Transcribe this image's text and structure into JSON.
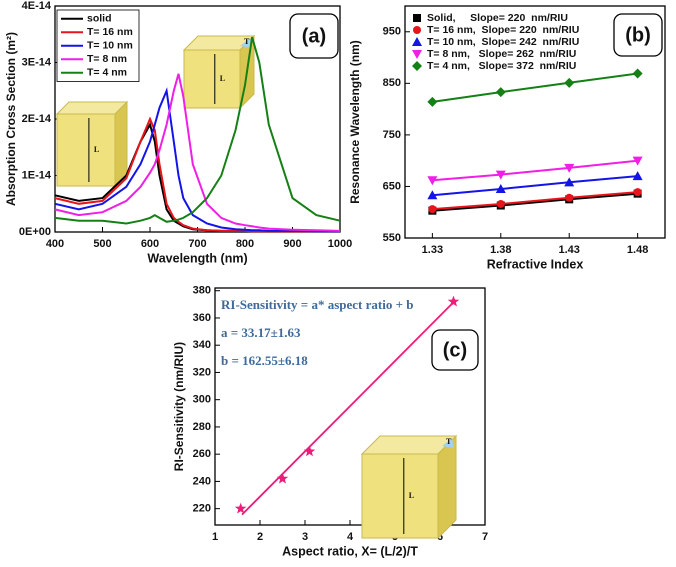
{
  "chart_data": [
    {
      "type": "line",
      "label": "(a)",
      "xlabel": "Wavelength (nm)",
      "ylabel": "Absorption Cross Section (m²)",
      "xlim": [
        400,
        1000
      ],
      "xticks": [
        400,
        500,
        600,
        700,
        800,
        900,
        1000
      ],
      "ylim": [
        0,
        4e-14
      ],
      "yticks": [
        {
          "value": 0,
          "label": "0E+00"
        },
        {
          "value": 1e-14,
          "label": "1E-14"
        },
        {
          "value": 2e-14,
          "label": "2E-14"
        },
        {
          "value": 3e-14,
          "label": "3E-14"
        },
        {
          "value": 4e-14,
          "label": "4E-14"
        }
      ],
      "legend": "upper left",
      "inset_labels": [
        "L",
        "T"
      ],
      "x": [
        400,
        450,
        500,
        550,
        580,
        600,
        610,
        620,
        635,
        650,
        660,
        670,
        690,
        720,
        750,
        780,
        800,
        815,
        830,
        850,
        900,
        950,
        1000
      ],
      "series": [
        {
          "name": "solid",
          "color": "#000000",
          "values": [
            6.5e-15,
            5.5e-15,
            6e-15,
            1e-14,
            1.6e-14,
            1.9e-14,
            1.6e-14,
            1e-14,
            4e-15,
            2e-15,
            1.5e-15,
            1e-15,
            5e-16,
            3e-16,
            2e-16,
            2e-16,
            2e-16,
            1e-16,
            1e-16,
            1e-16,
            1e-16,
            1e-16,
            1e-16
          ]
        },
        {
          "name": "T= 16 nm",
          "color": "#e8141c",
          "values": [
            6e-15,
            5e-15,
            5.5e-15,
            9.5e-15,
            1.6e-14,
            2e-14,
            1.8e-14,
            1.2e-14,
            5e-15,
            2.5e-15,
            1.8e-15,
            1.2e-15,
            6e-16,
            3e-16,
            2e-16,
            2e-16,
            2e-16,
            1e-16,
            1e-16,
            1e-16,
            1e-16,
            1e-16,
            1e-16
          ]
        },
        {
          "name": "T= 10 nm",
          "color": "#1414e8",
          "values": [
            5e-15,
            4e-15,
            5e-15,
            8e-15,
            1.2e-14,
            1.6e-14,
            1.9e-14,
            2.2e-14,
            2.5e-14,
            1.6e-14,
            1e-14,
            6e-15,
            3e-15,
            1.5e-15,
            8e-16,
            5e-16,
            4e-16,
            3e-16,
            3e-16,
            2e-16,
            2e-16,
            1e-16,
            1e-16
          ]
        },
        {
          "name": "T= 8 nm",
          "color": "#f01ee6",
          "values": [
            4e-15,
            3e-15,
            3.5e-15,
            5.5e-15,
            8e-15,
            1.05e-14,
            1.2e-14,
            1.45e-14,
            1.9e-14,
            2.5e-14,
            2.8e-14,
            2.4e-14,
            1.2e-14,
            5e-15,
            2.5e-15,
            1.5e-15,
            1.2e-15,
            1e-15,
            8e-16,
            6e-16,
            4e-16,
            3e-16,
            2e-16
          ]
        },
        {
          "name": "T= 4 nm",
          "color": "#158015",
          "values": [
            2.5e-15,
            2e-15,
            2e-15,
            1.5e-15,
            2e-15,
            2.5e-15,
            3e-15,
            2.5e-15,
            1.8e-15,
            2e-15,
            2.2e-15,
            2.5e-15,
            3.5e-15,
            6e-15,
            1e-14,
            1.8e-14,
            2.6e-14,
            3.45e-14,
            3e-14,
            1.9e-14,
            6e-15,
            3e-15,
            2e-15
          ]
        }
      ]
    },
    {
      "type": "line",
      "label": "(b)",
      "xlabel": "Refractive Index",
      "ylabel": "Resonance Wavelength (nm)",
      "xlim": [
        1.31,
        1.5
      ],
      "xticks": [
        1.33,
        1.38,
        1.43,
        1.48
      ],
      "ylim": [
        550,
        1000
      ],
      "yticks": [
        550,
        650,
        750,
        850,
        950
      ],
      "legend": "upper left",
      "x": [
        1.33,
        1.38,
        1.43,
        1.48
      ],
      "series": [
        {
          "name": "Solid,     Slope= 220  nm/RIU",
          "color": "#000000",
          "marker": "square",
          "values": [
            603,
            613,
            625,
            636
          ]
        },
        {
          "name": "T= 16 nm,  Slope= 220  nm/RIU",
          "color": "#e8141c",
          "marker": "circle",
          "values": [
            606,
            616,
            628,
            639
          ]
        },
        {
          "name": "T= 10 nm,  Slope= 242  nm/RIU",
          "color": "#1414e8",
          "marker": "triangle-up",
          "values": [
            633,
            645,
            658,
            670
          ]
        },
        {
          "name": "T= 8 nm,   Slope= 262  nm/RIU",
          "color": "#f01ee6",
          "marker": "triangle-down",
          "values": [
            662,
            673,
            686,
            700
          ]
        },
        {
          "name": "T= 4 nm,   Slope= 372  nm/RIU",
          "color": "#158015",
          "marker": "diamond",
          "values": [
            814,
            833,
            851,
            869
          ]
        }
      ]
    },
    {
      "type": "scatter",
      "label": "(c)",
      "xlabel": "Aspect ratio, X= (L/2)/T",
      "ylabel": "RI-Sensitivity (nm/RIU)",
      "xlim": [
        1,
        7
      ],
      "xticks": [
        1,
        2,
        3,
        4,
        5,
        6,
        7
      ],
      "ylim": [
        208,
        382
      ],
      "yticks": [
        220,
        240,
        260,
        280,
        300,
        320,
        340,
        360,
        380
      ],
      "annotations": [
        "RI-Sensitivity = a* aspect ratio + b",
        "a = 33.17±1.63",
        "b = 162.55±6.18"
      ],
      "inset_labels": [
        "L",
        "T"
      ],
      "series": [
        {
          "color": "#ee1c7a",
          "marker": "star",
          "x": [
            1.57,
            2.5,
            3.1,
            6.3
          ],
          "values": [
            220,
            242,
            262,
            372
          ]
        },
        {
          "color": "#ee1c7a",
          "marker": "none",
          "x": [
            1.6,
            6.3
          ],
          "values": [
            215.6,
            371.5
          ]
        }
      ]
    }
  ]
}
